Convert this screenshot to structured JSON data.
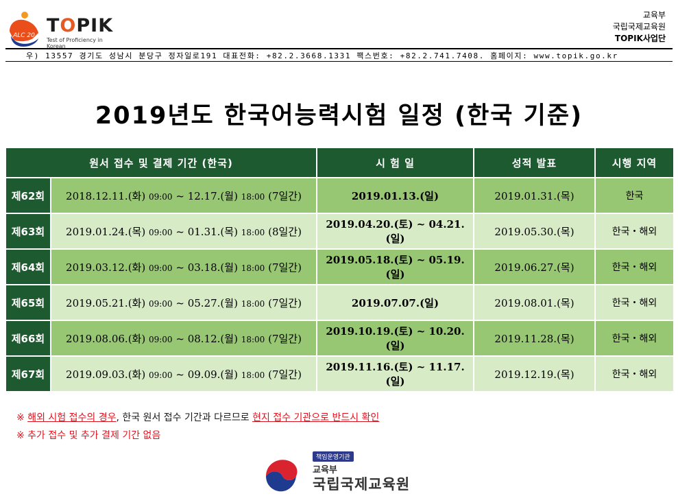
{
  "header": {
    "logo_text": "TOPIK",
    "logo_tagline": "Test of Proficiency in Korean",
    "logo_badge": "ALC 20",
    "org_lines": [
      "교육부",
      "국립국제교육원",
      "TOPIK사업단"
    ],
    "address": "우) 13557  경기도 성남시 분당구 정자일로191  대표전화: +82.2.3668.1331  팩스번호: +82.2.741.7408.  홈페이지: www.topik.go.kr"
  },
  "title": "2019년도 한국어능력시험 일정 (한국 기준)",
  "table": {
    "headers": [
      "원서 접수 및 결제 기간 (한국)",
      "시 험 일",
      "성적 발표",
      "시행 지역"
    ],
    "rows": [
      {
        "round": "제62회",
        "reg_start": "2018.12.11.(화)",
        "reg_start_time": "09:00",
        "tilde": "~",
        "reg_end": "12.17.(월)",
        "reg_end_time": "18:00",
        "days": "(7일간)",
        "exam": "2019.01.13.(일)",
        "result": "2019.01.31.(목)",
        "region": "한국"
      },
      {
        "round": "제63회",
        "reg_start": "2019.01.24.(목)",
        "reg_start_time": "09:00",
        "tilde": "~",
        "reg_end": "01.31.(목)",
        "reg_end_time": "18:00",
        "days": "(8일간)",
        "exam": "2019.04.20.(토) ~ 04.21.(일)",
        "result": "2019.05.30.(목)",
        "region": "한국・해외"
      },
      {
        "round": "제64회",
        "reg_start": "2019.03.12.(화)",
        "reg_start_time": "09:00",
        "tilde": "~",
        "reg_end": "03.18.(월)",
        "reg_end_time": "18:00",
        "days": "(7일간)",
        "exam": "2019.05.18.(토) ~ 05.19.(일)",
        "result": "2019.06.27.(목)",
        "region": "한국・해외"
      },
      {
        "round": "제65회",
        "reg_start": "2019.05.21.(화)",
        "reg_start_time": "09:00",
        "tilde": "~",
        "reg_end": "05.27.(월)",
        "reg_end_time": "18:00",
        "days": "(7일간)",
        "exam": "2019.07.07.(일)",
        "result": "2019.08.01.(목)",
        "region": "한국・해외"
      },
      {
        "round": "제66회",
        "reg_start": "2019.08.06.(화)",
        "reg_start_time": "09:00",
        "tilde": "~",
        "reg_end": "08.12.(월)",
        "reg_end_time": "18:00",
        "days": "(7일간)",
        "exam": "2019.10.19.(토) ~ 10.20.(일)",
        "result": "2019.11.28.(목)",
        "region": "한국・해외"
      },
      {
        "round": "제67회",
        "reg_start": "2019.09.03.(화)",
        "reg_start_time": "09:00",
        "tilde": "~",
        "reg_end": "09.09.(월)",
        "reg_end_time": "18:00",
        "days": "(7일간)",
        "exam": "2019.11.16.(토) ~ 11.17.(일)",
        "result": "2019.12.19.(목)",
        "region": "한국・해외"
      }
    ]
  },
  "notes": {
    "note1_mark": "※",
    "note1_part1": "해외 시험 접수의 경우",
    "note1_part2": ", 한국 원서 접수 기간과 다르므로 ",
    "note1_part3": "현지 접수 기관으로 반드시 확인",
    "note2": "※ 추가 접수 및 추가 결제 기간 없음"
  },
  "footer_logo": {
    "badge": "책임운영기관",
    "ministry": "교육부",
    "institute": "국립국제교육원"
  },
  "colors": {
    "header_green": "#1e5a30",
    "row_dark": "#98c774",
    "row_light": "#d8ebc7",
    "note_red": "#e0141e"
  }
}
